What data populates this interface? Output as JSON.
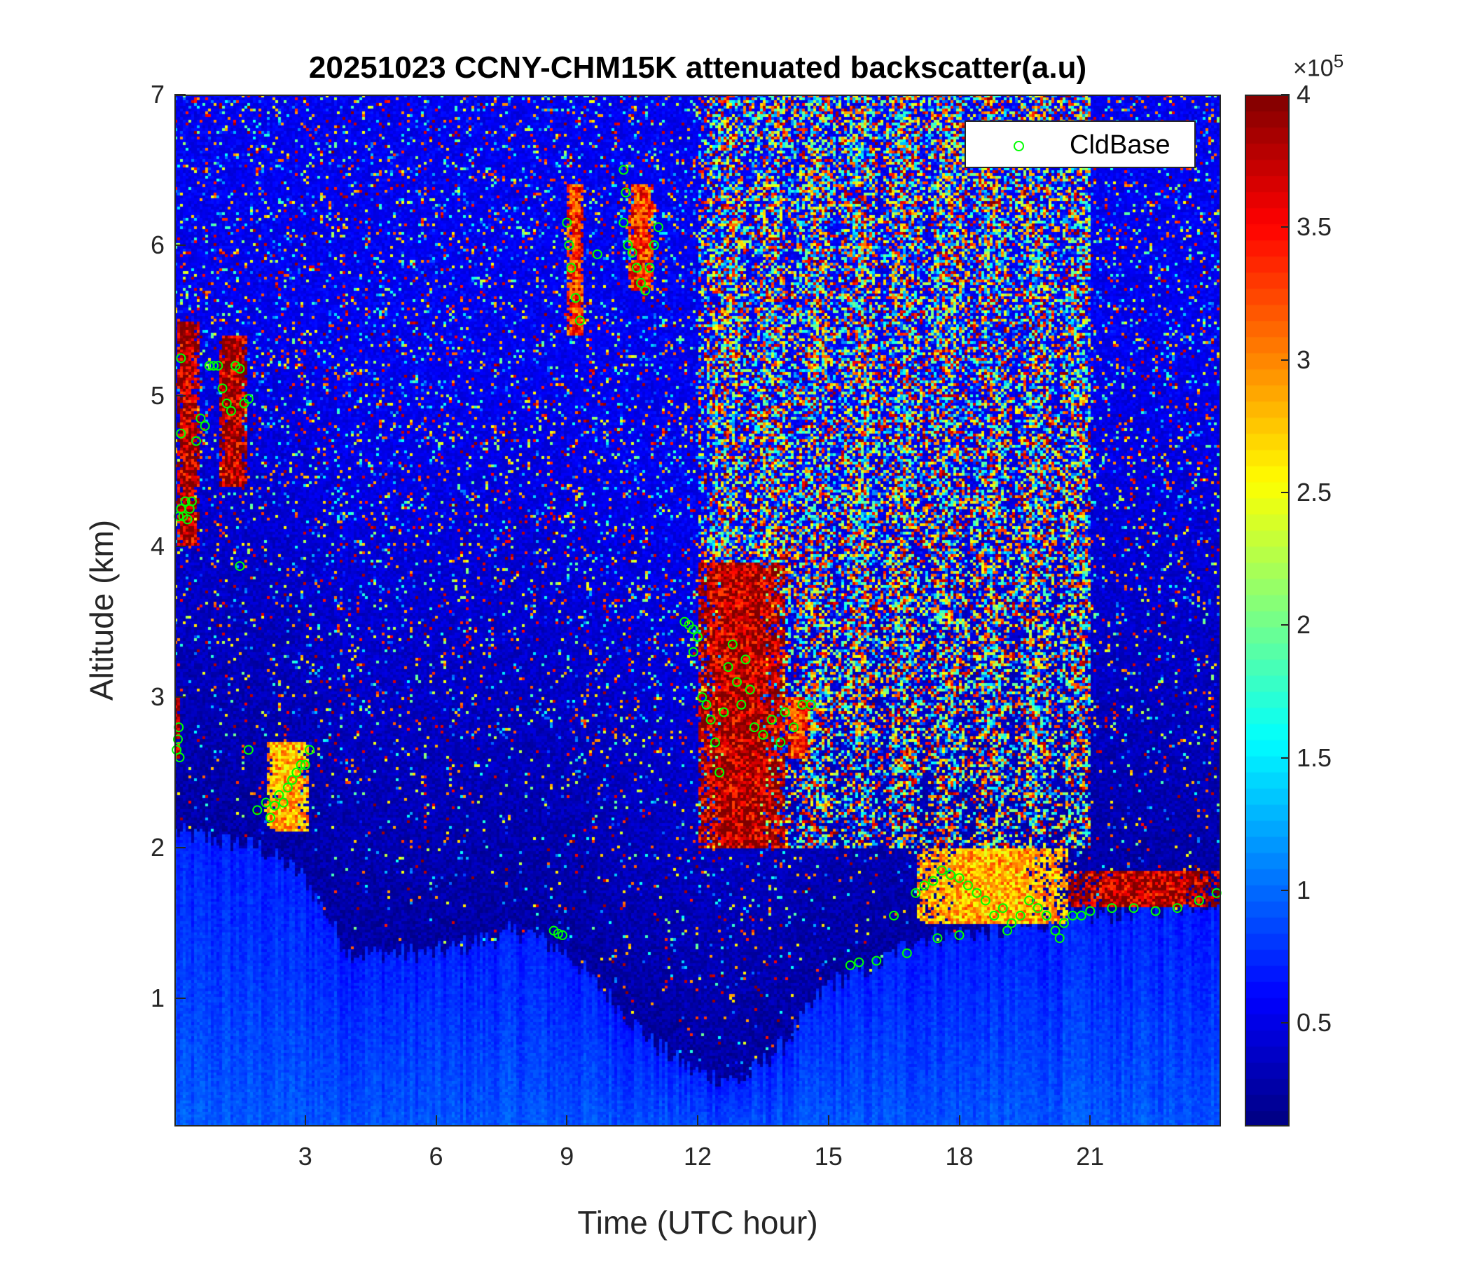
{
  "chart_data": {
    "type": "heatmap",
    "title": "20251023 CCNY-CHM15K attenuated backscatter(a.u)",
    "xlabel": "Time (UTC hour)",
    "ylabel": "Altitude (km)",
    "xlim": [
      0,
      24
    ],
    "ylim": [
      0.15,
      7
    ],
    "xticks": [
      3,
      6,
      9,
      12,
      15,
      18,
      21
    ],
    "yticks": [
      1,
      2,
      3,
      4,
      5,
      6,
      7
    ],
    "colormap": "jet",
    "colorbar": {
      "range": [
        0.11,
        4
      ],
      "ticks": [
        0.5,
        1,
        1.5,
        2,
        2.5,
        3,
        3.5,
        4
      ],
      "tick_labels": [
        "0.5",
        "1",
        "1.5",
        "2",
        "2.5",
        "3",
        "3.5",
        "4"
      ],
      "exponent_prefix": "×10",
      "exponent": "5"
    },
    "grid": false,
    "legend": {
      "position": "top-right",
      "entries": [
        "CldBase"
      ]
    },
    "boundary_layer_top_km": [
      [
        0,
        2.1
      ],
      [
        2,
        2.0
      ],
      [
        3,
        1.8
      ],
      [
        4,
        1.3
      ],
      [
        6,
        1.3
      ],
      [
        8,
        1.45
      ],
      [
        9,
        1.3
      ],
      [
        10,
        1.0
      ],
      [
        11,
        0.7
      ],
      [
        12,
        0.5
      ],
      [
        13,
        0.45
      ],
      [
        14,
        0.7
      ],
      [
        15,
        1.1
      ],
      [
        16,
        1.2
      ],
      [
        17,
        1.4
      ],
      [
        19,
        1.45
      ],
      [
        21,
        1.55
      ],
      [
        24,
        1.65
      ]
    ],
    "cloud_layers": [
      {
        "start": 0.05,
        "end": 0.55,
        "base": 4.0,
        "top": 5.5,
        "value": 4
      },
      {
        "start": 1.0,
        "end": 1.7,
        "base": 4.4,
        "top": 5.4,
        "value": 4
      },
      {
        "start": 0.0,
        "end": 0.12,
        "base": 2.6,
        "top": 3.0,
        "value": 4
      },
      {
        "start": 2.1,
        "end": 3.1,
        "base": 2.1,
        "top": 2.7,
        "value": 3
      },
      {
        "start": 9.0,
        "end": 9.4,
        "base": 5.4,
        "top": 6.4,
        "value": 3.5
      },
      {
        "start": 10.4,
        "end": 11.0,
        "base": 5.7,
        "top": 6.4,
        "value": 3.5
      },
      {
        "start": 12.0,
        "end": 14.0,
        "base": 2.0,
        "top": 3.9,
        "value": 4
      },
      {
        "start": 14.0,
        "end": 14.6,
        "base": 2.6,
        "top": 3.0,
        "value": 3.5
      },
      {
        "start": 17.0,
        "end": 20.5,
        "base": 1.5,
        "top": 2.0,
        "value": 3
      },
      {
        "start": 20.5,
        "end": 24.0,
        "base": 1.6,
        "top": 1.85,
        "value": 4
      }
    ],
    "high_noise_band": {
      "start": 12.0,
      "end": 21.0,
      "base": 2.0,
      "top": 7.0
    },
    "series": [
      {
        "name": "CldBase",
        "type": "scatter",
        "marker": "circle",
        "color": "#00ff00",
        "points": [
          [
            0.05,
            2.65
          ],
          [
            0.08,
            2.72
          ],
          [
            0.1,
            2.8
          ],
          [
            0.12,
            2.6
          ],
          [
            0.1,
            4.2
          ],
          [
            0.15,
            4.25
          ],
          [
            0.2,
            4.2
          ],
          [
            0.25,
            4.3
          ],
          [
            0.3,
            4.18
          ],
          [
            0.35,
            4.25
          ],
          [
            0.4,
            4.3
          ],
          [
            0.15,
            4.75
          ],
          [
            0.15,
            5.25
          ],
          [
            0.5,
            4.7
          ],
          [
            0.6,
            4.85
          ],
          [
            0.7,
            4.8
          ],
          [
            0.8,
            5.2
          ],
          [
            0.9,
            5.2
          ],
          [
            1.0,
            5.2
          ],
          [
            1.1,
            5.05
          ],
          [
            1.2,
            4.95
          ],
          [
            1.3,
            4.9
          ],
          [
            1.4,
            5.2
          ],
          [
            1.5,
            5.18
          ],
          [
            1.6,
            4.95
          ],
          [
            1.7,
            4.98
          ],
          [
            1.5,
            3.87
          ],
          [
            1.7,
            2.65
          ],
          [
            1.9,
            2.25
          ],
          [
            2.1,
            2.3
          ],
          [
            2.2,
            2.2
          ],
          [
            2.3,
            2.28
          ],
          [
            2.4,
            2.35
          ],
          [
            2.5,
            2.3
          ],
          [
            2.6,
            2.4
          ],
          [
            2.7,
            2.45
          ],
          [
            2.8,
            2.5
          ],
          [
            2.9,
            2.55
          ],
          [
            3.0,
            2.55
          ],
          [
            3.1,
            2.65
          ],
          [
            8.7,
            1.45
          ],
          [
            8.8,
            1.43
          ],
          [
            8.9,
            1.42
          ],
          [
            9.0,
            6.15
          ],
          [
            9.05,
            6.0
          ],
          [
            9.1,
            5.85
          ],
          [
            9.2,
            5.65
          ],
          [
            9.3,
            5.5
          ],
          [
            9.7,
            5.94
          ],
          [
            10.3,
            6.5
          ],
          [
            10.35,
            6.35
          ],
          [
            10.3,
            6.15
          ],
          [
            10.4,
            6.0
          ],
          [
            10.5,
            5.95
          ],
          [
            10.6,
            5.85
          ],
          [
            10.7,
            5.75
          ],
          [
            10.8,
            5.7
          ],
          [
            10.9,
            5.85
          ],
          [
            11.0,
            6.0
          ],
          [
            11.1,
            6.12
          ],
          [
            11.7,
            3.5
          ],
          [
            11.8,
            3.48
          ],
          [
            11.9,
            3.45
          ],
          [
            12.0,
            3.4
          ],
          [
            11.9,
            3.3
          ],
          [
            12.1,
            3.0
          ],
          [
            12.2,
            2.95
          ],
          [
            12.3,
            2.85
          ],
          [
            12.4,
            2.7
          ],
          [
            12.5,
            2.5
          ],
          [
            12.6,
            2.9
          ],
          [
            12.7,
            3.2
          ],
          [
            12.8,
            3.35
          ],
          [
            12.9,
            3.1
          ],
          [
            13.0,
            2.95
          ],
          [
            13.1,
            3.25
          ],
          [
            13.2,
            3.05
          ],
          [
            13.3,
            2.8
          ],
          [
            13.5,
            2.75
          ],
          [
            13.7,
            2.85
          ],
          [
            13.9,
            2.7
          ],
          [
            14.0,
            2.9
          ],
          [
            14.2,
            2.8
          ],
          [
            14.4,
            2.95
          ],
          [
            14.6,
            2.95
          ],
          [
            15.5,
            1.22
          ],
          [
            15.7,
            1.24
          ],
          [
            16.1,
            1.25
          ],
          [
            16.5,
            1.55
          ],
          [
            16.8,
            1.3
          ],
          [
            17.0,
            1.7
          ],
          [
            17.2,
            1.75
          ],
          [
            17.4,
            1.78
          ],
          [
            17.6,
            1.85
          ],
          [
            17.8,
            1.82
          ],
          [
            18.0,
            1.8
          ],
          [
            18.2,
            1.75
          ],
          [
            18.4,
            1.7
          ],
          [
            18.6,
            1.65
          ],
          [
            18.8,
            1.55
          ],
          [
            19.0,
            1.6
          ],
          [
            19.2,
            1.5
          ],
          [
            19.4,
            1.55
          ],
          [
            19.6,
            1.65
          ],
          [
            19.8,
            1.6
          ],
          [
            20.0,
            1.55
          ],
          [
            20.2,
            1.45
          ],
          [
            20.4,
            1.5
          ],
          [
            20.6,
            1.55
          ],
          [
            20.8,
            1.55
          ],
          [
            21.0,
            1.58
          ],
          [
            21.5,
            1.6
          ],
          [
            22.0,
            1.6
          ],
          [
            22.5,
            1.58
          ],
          [
            23.0,
            1.6
          ],
          [
            23.5,
            1.65
          ],
          [
            23.9,
            1.7
          ],
          [
            17.5,
            1.4
          ],
          [
            18.0,
            1.42
          ],
          [
            19.1,
            1.45
          ],
          [
            20.3,
            1.4
          ]
        ]
      }
    ]
  }
}
